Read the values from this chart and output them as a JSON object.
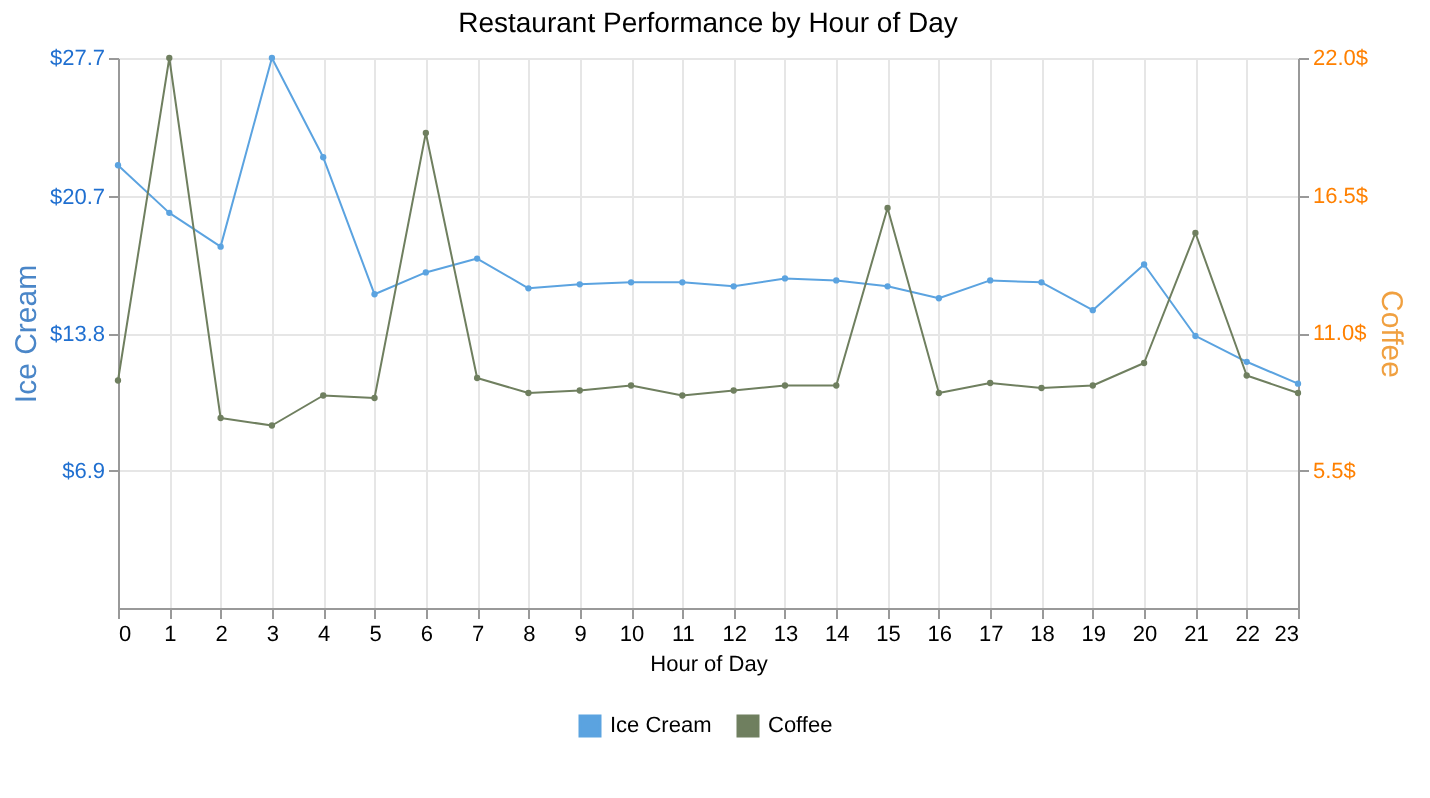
{
  "chart_data": {
    "type": "line",
    "title": "Restaurant Performance by Hour of Day",
    "xlabel": "Hour of Day",
    "ylabel": "Ice Cream",
    "y2label": "Coffee",
    "x": [
      0,
      1,
      2,
      3,
      4,
      5,
      6,
      7,
      8,
      9,
      10,
      11,
      12,
      13,
      14,
      15,
      16,
      17,
      18,
      19,
      20,
      21,
      22,
      23
    ],
    "series": [
      {
        "name": "Ice Cream",
        "color": "#5ba3e0",
        "axis": "y",
        "values": [
          22.3,
          19.9,
          18.2,
          27.7,
          22.7,
          15.8,
          16.9,
          17.6,
          16.1,
          16.3,
          16.4,
          16.4,
          16.2,
          16.6,
          16.5,
          16.2,
          15.6,
          16.5,
          16.4,
          15.0,
          17.3,
          13.7,
          12.4,
          11.3
        ]
      },
      {
        "name": "Coffee",
        "color": "#6f7f5f",
        "axis": "y2",
        "values": [
          9.1,
          22.0,
          7.6,
          7.3,
          8.5,
          8.4,
          19.0,
          9.2,
          8.6,
          8.7,
          8.9,
          8.5,
          8.7,
          8.9,
          8.9,
          16.0,
          8.6,
          9.0,
          8.8,
          8.9,
          9.8,
          15.0,
          9.3,
          8.6
        ]
      }
    ],
    "xlim": [
      0,
      23
    ],
    "xticks": [
      0,
      1,
      2,
      3,
      4,
      5,
      6,
      7,
      8,
      9,
      10,
      11,
      12,
      13,
      14,
      15,
      16,
      17,
      18,
      19,
      20,
      21,
      22,
      23
    ],
    "ylim": [
      0,
      27.7
    ],
    "yticks": [
      {
        "value": 6.9,
        "label": "$6.9"
      },
      {
        "value": 13.8,
        "label": "$13.8"
      },
      {
        "value": 20.7,
        "label": "$20.7"
      },
      {
        "value": 27.7,
        "label": "$27.7"
      }
    ],
    "y2lim": [
      0,
      22.0
    ],
    "y2ticks": [
      {
        "value": 5.5,
        "label": "5.5$"
      },
      {
        "value": 11.0,
        "label": "11.0$"
      },
      {
        "value": 16.5,
        "label": "16.5$"
      },
      {
        "value": 22.0,
        "label": "22.0$"
      }
    ],
    "grid": true,
    "legend": "bottom",
    "marker": "circle",
    "line_style": "solid"
  }
}
